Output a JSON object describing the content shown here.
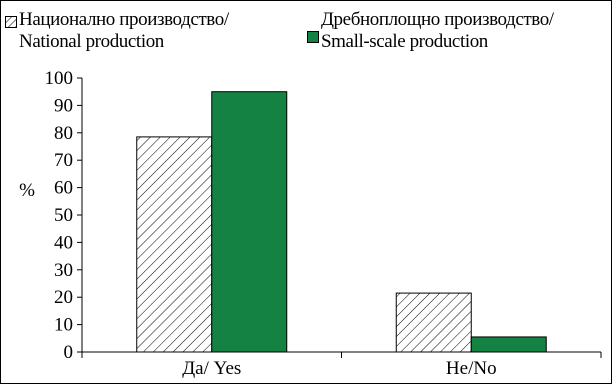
{
  "legend": {
    "items": [
      {
        "line1": "Национално производство/",
        "line2": "National production"
      },
      {
        "line1": "Дребноплощно производство/",
        "line2": "Small-scale production"
      }
    ]
  },
  "chart_data": {
    "type": "bar",
    "title": "",
    "xlabel": "",
    "ylabel": "%",
    "ylim": [
      0,
      100
    ],
    "yticks": [
      0,
      10,
      20,
      30,
      40,
      50,
      60,
      70,
      80,
      90,
      100
    ],
    "grid": false,
    "legend_position": "top",
    "categories": [
      "Да/ Yes",
      "Не/No"
    ],
    "series": [
      {
        "name": "Национално производство/ National production",
        "values": [
          78.5,
          21.5
        ],
        "style": "hatched",
        "color": "#ffffff"
      },
      {
        "name": "Дребноплощно производство/ Small-scale production",
        "values": [
          95,
          5.5
        ],
        "style": "solid",
        "color": "#138243"
      }
    ]
  }
}
